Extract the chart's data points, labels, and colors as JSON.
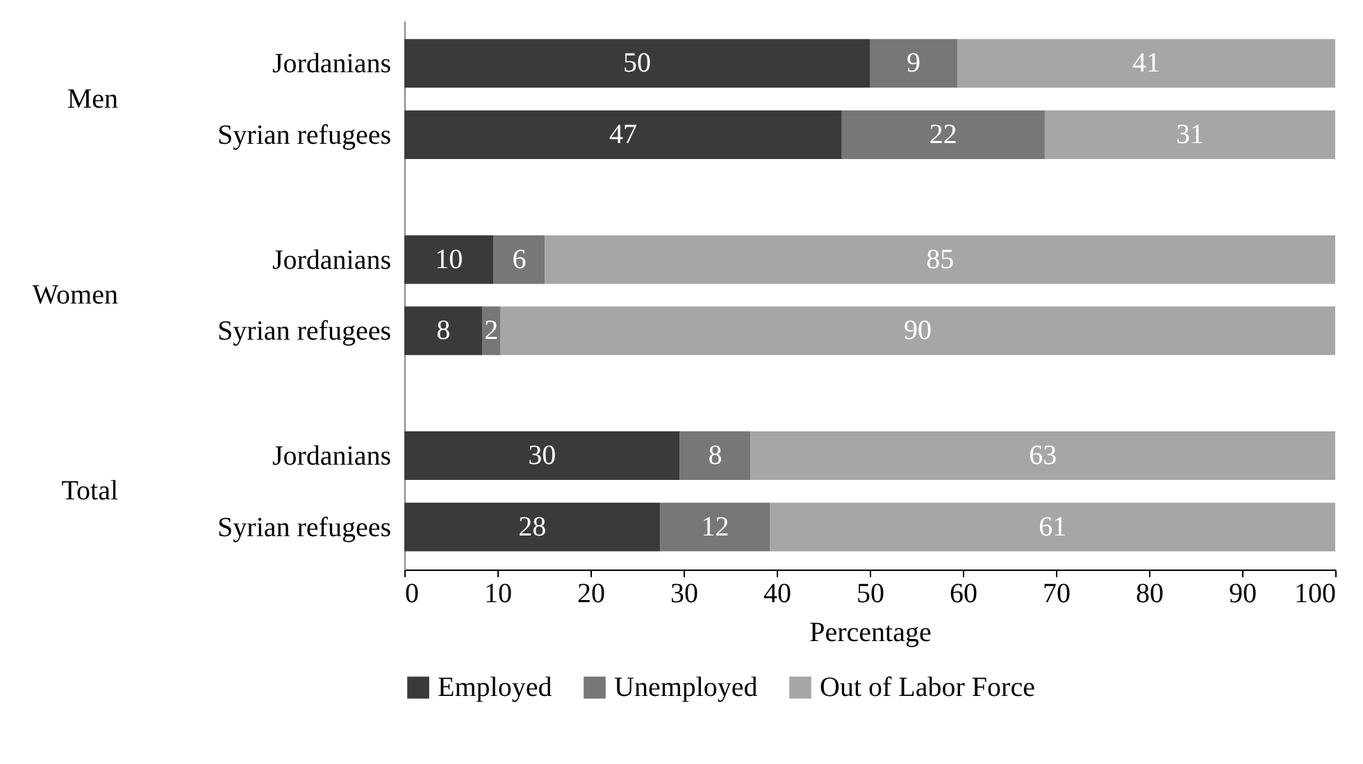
{
  "chart_data": {
    "type": "bar",
    "orientation": "horizontal",
    "stacked": true,
    "categories": [
      "Jordanians",
      "Syrian refugees",
      "Jordanians",
      "Syrian refugees",
      "Jordanians",
      "Syrian refugees"
    ],
    "annotations": [
      "Men",
      "Women",
      "Total"
    ],
    "series": [
      {
        "name": "Employed",
        "color": "#3a3a3a",
        "values": [
          50.0,
          47.0,
          9.6,
          8.4,
          29.6,
          27.5
        ],
        "value_labels": [
          "50",
          "47",
          "10",
          "8",
          "30",
          "28"
        ]
      },
      {
        "name": "Unemployed",
        "color": "#777777",
        "values": [
          9.4,
          21.8,
          5.5,
          1.9,
          7.6,
          11.8
        ],
        "value_labels": [
          "9",
          "22",
          "6",
          "2",
          "8",
          "12"
        ]
      },
      {
        "name": "Out of Labor Force",
        "color": "#a6a6a6",
        "values": [
          40.6,
          31.2,
          84.9,
          89.7,
          62.8,
          60.7
        ],
        "value_labels": [
          "41",
          "31",
          "85",
          "90",
          "63",
          "61"
        ]
      }
    ],
    "xlabel": "Percentage",
    "xlim": [
      0,
      100
    ],
    "xticks": [
      0,
      10,
      20,
      30,
      40,
      50,
      60,
      70,
      80,
      90,
      100
    ],
    "legend": "bottom",
    "grid": false
  }
}
